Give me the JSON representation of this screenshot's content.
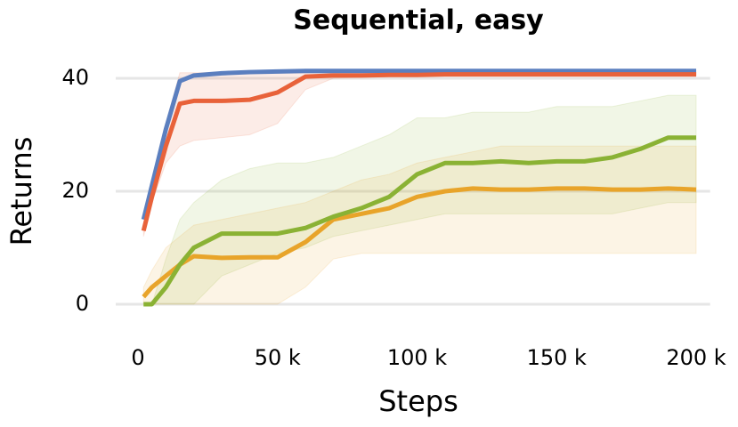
{
  "chart_data": {
    "type": "line",
    "title": "Sequential, easy",
    "xlabel": "Steps",
    "ylabel": "Returns",
    "x": [
      2000,
      5000,
      10000,
      15000,
      20000,
      30000,
      40000,
      50000,
      60000,
      70000,
      80000,
      90000,
      100000,
      110000,
      120000,
      130000,
      140000,
      150000,
      160000,
      170000,
      180000,
      190000,
      200000
    ],
    "series": [
      {
        "color": "#5b7fbf",
        "values": [
          15,
          21,
          31,
          39.5,
          40.5,
          40.9,
          41.1,
          41.2,
          41.3,
          41.3,
          41.3,
          41.3,
          41.3,
          41.3,
          41.3,
          41.3,
          41.3,
          41.3,
          41.3,
          41.3,
          41.3,
          41.3,
          41.3
        ]
      },
      {
        "color": "#e8623a",
        "values": [
          13,
          19,
          28,
          35.5,
          36,
          36,
          36.2,
          37.5,
          40.3,
          40.5,
          40.5,
          40.6,
          40.6,
          40.7,
          40.7,
          40.7,
          40.7,
          40.7,
          40.7,
          40.7,
          40.7,
          40.7,
          40.7
        ],
        "lower": [
          12,
          18,
          25,
          28,
          29,
          29.5,
          30,
          32,
          38,
          40,
          40.2,
          40.3,
          40.4,
          40.5,
          40.5,
          40.5,
          40.5,
          40.5,
          40.5,
          40.5,
          40.5,
          40.5,
          40.5
        ],
        "upper": [
          14,
          20,
          32,
          41,
          41,
          41,
          41,
          41,
          41,
          41,
          41,
          41,
          41,
          41,
          41,
          41,
          41,
          41,
          41,
          41,
          41,
          41,
          41
        ]
      },
      {
        "color": "#8ab234",
        "values": [
          0,
          0,
          3,
          7,
          10,
          12.5,
          12.5,
          12.5,
          13.5,
          15.5,
          17,
          19,
          23,
          25,
          25,
          25.3,
          25,
          25.3,
          25.3,
          26,
          27.5,
          29.5,
          29.5
        ],
        "lower": [
          0,
          0,
          0,
          0,
          0,
          5,
          7,
          9,
          10,
          12,
          13,
          14,
          15,
          16,
          16,
          16,
          16,
          16,
          16,
          16,
          17,
          18,
          18
        ],
        "upper": [
          0,
          0,
          8,
          15,
          18,
          22,
          24,
          25,
          25,
          26,
          28,
          30,
          33,
          33,
          34,
          34,
          34,
          35,
          35,
          35,
          36,
          37,
          37
        ]
      },
      {
        "color": "#e8a42a",
        "values": [
          1.3,
          3,
          5,
          7,
          8.5,
          8.2,
          8.3,
          8.3,
          11,
          15,
          16,
          17,
          19,
          20,
          20.5,
          20.3,
          20.3,
          20.5,
          20.5,
          20.3,
          20.3,
          20.5,
          20.3
        ],
        "lower": [
          0,
          0,
          0,
          0,
          0,
          0,
          0,
          0,
          3,
          8,
          9,
          9,
          9,
          9,
          9,
          9,
          9,
          9,
          9,
          9,
          9,
          9,
          9
        ],
        "upper": [
          3,
          6,
          10,
          12,
          14,
          15,
          16,
          17,
          18,
          20,
          22,
          23,
          25,
          26,
          27,
          28,
          28,
          28,
          28,
          28,
          28,
          28,
          28
        ]
      }
    ],
    "xlim": [
      -5000,
      205000
    ],
    "ylim": [
      -3,
      43
    ],
    "xticks": [
      0,
      {
        "value": 50000,
        "label": "50 k"
      },
      {
        "value": 100000,
        "label": "100 k"
      },
      {
        "value": 150000,
        "label": "150 k"
      },
      {
        "value": 200000,
        "label": "200 k"
      }
    ],
    "yticks": [
      0,
      20,
      40
    ],
    "grid": true
  }
}
